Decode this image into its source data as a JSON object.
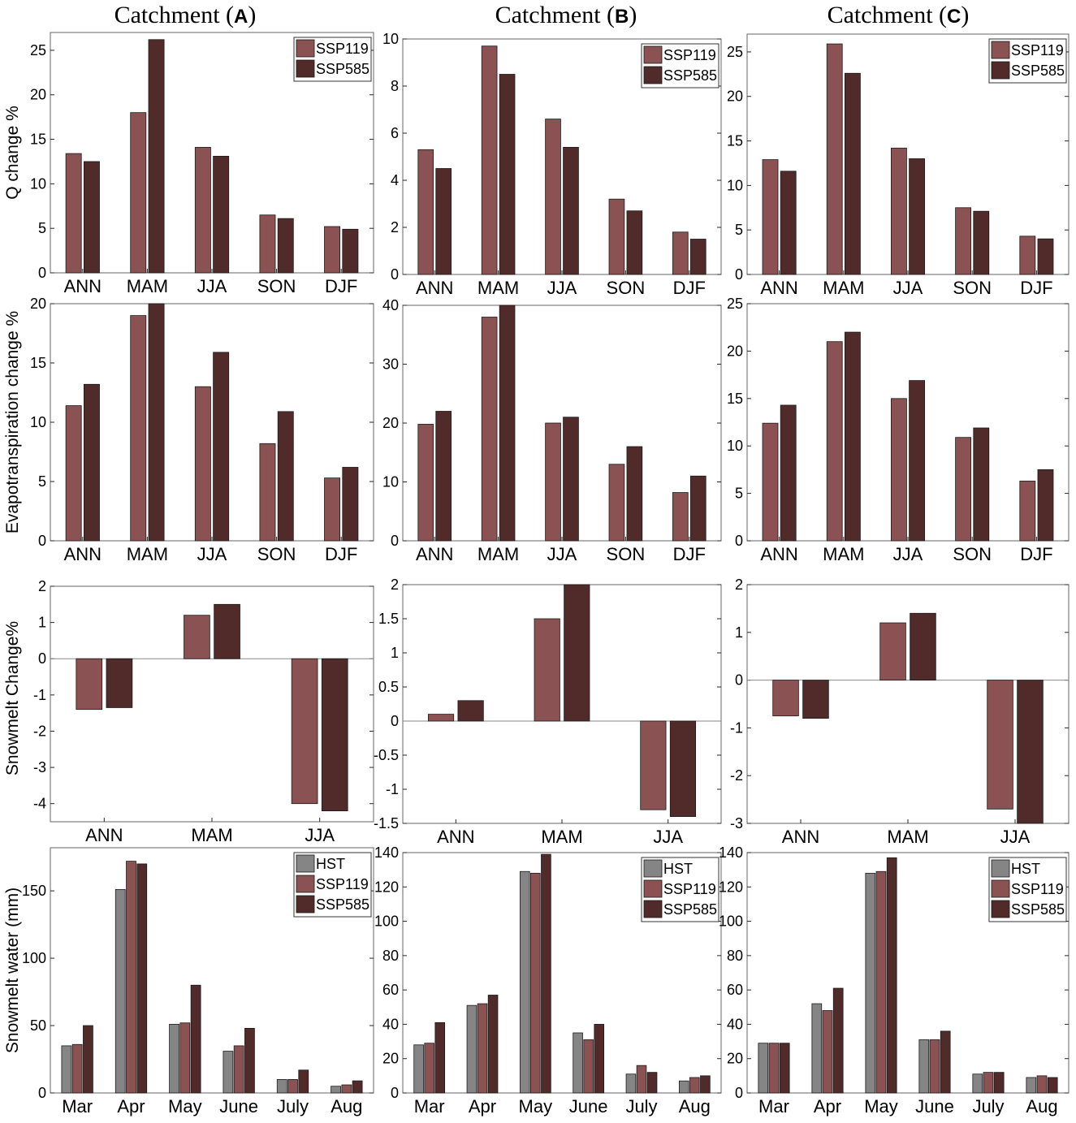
{
  "column_titles": [
    {
      "prefix": "Catchment (",
      "letter": "A",
      "suffix": ")"
    },
    {
      "prefix": "Catchment (",
      "letter": "B",
      "suffix": ")"
    },
    {
      "prefix": "Catchment (",
      "letter": "C",
      "suffix": ")"
    }
  ],
  "row_ylabels": [
    "Q change %",
    "Evapotranspiration change %",
    "Snowmelt Change%",
    "Snowmelt water (mm)"
  ],
  "colors": {
    "HST": "#858585",
    "SSP119": "#8a5252",
    "SSP585": "#512a2a",
    "axis": "#262626",
    "frame": "#666666"
  },
  "chart_data": [
    {
      "id": "A-Q",
      "type": "bar",
      "categories": [
        "ANN",
        "MAM",
        "JJA",
        "SON",
        "DJF"
      ],
      "series": [
        {
          "name": "SSP119",
          "values": [
            13.4,
            18.0,
            14.1,
            6.5,
            5.2
          ]
        },
        {
          "name": "SSP585",
          "values": [
            12.5,
            26.2,
            13.1,
            6.1,
            4.9
          ]
        }
      ],
      "ylim": [
        0,
        27
      ],
      "yticks": [
        0,
        5,
        10,
        15,
        20,
        25
      ],
      "ylabel": "Q change %",
      "legend": "top-right"
    },
    {
      "id": "B-Q",
      "type": "bar",
      "categories": [
        "ANN",
        "MAM",
        "JJA",
        "SON",
        "DJF"
      ],
      "series": [
        {
          "name": "SSP119",
          "values": [
            5.3,
            9.7,
            6.6,
            3.2,
            1.8
          ]
        },
        {
          "name": "SSP585",
          "values": [
            4.5,
            8.5,
            5.4,
            2.7,
            1.5
          ]
        }
      ],
      "ylim": [
        0,
        10
      ],
      "yticks": [
        0,
        2,
        4,
        6,
        8,
        10
      ],
      "legend": "top-right"
    },
    {
      "id": "C-Q",
      "type": "bar",
      "categories": [
        "ANN",
        "MAM",
        "JJA",
        "SON",
        "DJF"
      ],
      "series": [
        {
          "name": "SSP119",
          "values": [
            12.9,
            25.9,
            14.2,
            7.5,
            4.3
          ]
        },
        {
          "name": "SSP585",
          "values": [
            11.6,
            22.6,
            13.0,
            7.1,
            4.0
          ]
        }
      ],
      "ylim": [
        0,
        27
      ],
      "yticks": [
        0,
        5,
        10,
        15,
        20,
        25
      ],
      "legend": "top-right"
    },
    {
      "id": "A-ET",
      "type": "bar",
      "categories": [
        "ANN",
        "MAM",
        "JJA",
        "SON",
        "DJF"
      ],
      "series": [
        {
          "name": "SSP119",
          "values": [
            11.4,
            19.0,
            13.0,
            8.2,
            5.3
          ]
        },
        {
          "name": "SSP585",
          "values": [
            13.2,
            20.0,
            15.9,
            10.9,
            6.2
          ]
        }
      ],
      "ylim": [
        0,
        20
      ],
      "yticks": [
        0,
        5,
        10,
        15,
        20
      ],
      "ylabel": "Evapotranspiration change %"
    },
    {
      "id": "B-ET",
      "type": "bar",
      "categories": [
        "ANN",
        "MAM",
        "JJA",
        "SON",
        "DJF"
      ],
      "series": [
        {
          "name": "SSP119",
          "values": [
            19.8,
            38.0,
            20.0,
            13.0,
            8.2
          ]
        },
        {
          "name": "SSP585",
          "values": [
            22.0,
            40.0,
            21.0,
            16.0,
            11.0
          ]
        }
      ],
      "ylim": [
        0,
        40
      ],
      "yticks": [
        0,
        10,
        20,
        30,
        40
      ]
    },
    {
      "id": "C-ET",
      "type": "bar",
      "categories": [
        "ANN",
        "MAM",
        "JJA",
        "SON",
        "DJF"
      ],
      "series": [
        {
          "name": "SSP119",
          "values": [
            12.4,
            21.0,
            15.0,
            10.9,
            6.3
          ]
        },
        {
          "name": "SSP585",
          "values": [
            14.3,
            22.0,
            16.9,
            11.9,
            7.5
          ]
        }
      ],
      "ylim": [
        0,
        25
      ],
      "yticks": [
        0,
        5,
        10,
        15,
        20,
        25
      ]
    },
    {
      "id": "A-SM",
      "type": "bar",
      "categories": [
        "ANN",
        "MAM",
        "JJA"
      ],
      "series": [
        {
          "name": "SSP119",
          "values": [
            -1.4,
            1.2,
            -4.0
          ]
        },
        {
          "name": "SSP585",
          "values": [
            -1.35,
            1.5,
            -4.2
          ]
        }
      ],
      "ylim": [
        -4.5,
        2
      ],
      "yticks": [
        -4,
        -3,
        -2,
        -1,
        0,
        1,
        2
      ],
      "ylabel": "Snowmelt Change%"
    },
    {
      "id": "B-SM",
      "type": "bar",
      "categories": [
        "ANN",
        "MAM",
        "JJA"
      ],
      "series": [
        {
          "name": "SSP119",
          "values": [
            0.1,
            1.5,
            -1.3
          ]
        },
        {
          "name": "SSP585",
          "values": [
            0.3,
            2.0,
            -1.4
          ]
        }
      ],
      "ylim": [
        -1.5,
        2
      ],
      "yticks": [
        -1.5,
        -1,
        -0.5,
        0,
        0.5,
        1,
        1.5,
        2
      ]
    },
    {
      "id": "C-SM",
      "type": "bar",
      "categories": [
        "ANN",
        "MAM",
        "JJA"
      ],
      "series": [
        {
          "name": "SSP119",
          "values": [
            -0.75,
            1.2,
            -2.7
          ]
        },
        {
          "name": "SSP585",
          "values": [
            -0.8,
            1.4,
            -3.0
          ]
        }
      ],
      "ylim": [
        -3,
        2
      ],
      "yticks": [
        -3,
        -2,
        -1,
        0,
        1,
        2
      ]
    },
    {
      "id": "A-SW",
      "type": "bar",
      "categories": [
        "Mar",
        "Apr",
        "May",
        "June",
        "July",
        "Aug"
      ],
      "series": [
        {
          "name": "HST",
          "values": [
            35,
            151,
            51,
            31,
            10,
            5
          ]
        },
        {
          "name": "SSP119",
          "values": [
            36,
            172,
            52,
            35,
            10,
            6
          ]
        },
        {
          "name": "SSP585",
          "values": [
            50,
            170,
            80,
            48,
            17,
            9
          ]
        }
      ],
      "ylim": [
        0,
        182
      ],
      "yticks": [
        0,
        50,
        100,
        150
      ],
      "ylabel": "Snowmelt water (mm)",
      "legend": "top-right"
    },
    {
      "id": "B-SW",
      "type": "bar",
      "categories": [
        "Mar",
        "Apr",
        "May",
        "June",
        "July",
        "Aug"
      ],
      "series": [
        {
          "name": "HST",
          "values": [
            28,
            51,
            129,
            35,
            11,
            7
          ]
        },
        {
          "name": "SSP119",
          "values": [
            29,
            52,
            128,
            31,
            16,
            9
          ]
        },
        {
          "name": "SSP585",
          "values": [
            41,
            57,
            139,
            40,
            12,
            10
          ]
        }
      ],
      "ylim": [
        0,
        140
      ],
      "yticks": [
        0,
        20,
        40,
        60,
        80,
        100,
        120,
        140
      ],
      "legend": "top-right"
    },
    {
      "id": "C-SW",
      "type": "bar",
      "categories": [
        "Mar",
        "Apr",
        "May",
        "June",
        "July",
        "Aug"
      ],
      "series": [
        {
          "name": "HST",
          "values": [
            29,
            52,
            128,
            31,
            11,
            9
          ]
        },
        {
          "name": "SSP119",
          "values": [
            29,
            48,
            129,
            31,
            12,
            10
          ]
        },
        {
          "name": "SSP585",
          "values": [
            29,
            61,
            137,
            36,
            12,
            9
          ]
        }
      ],
      "ylim": [
        0,
        140
      ],
      "yticks": [
        0,
        20,
        40,
        60,
        80,
        100,
        120,
        140
      ],
      "legend": "top-right"
    }
  ]
}
